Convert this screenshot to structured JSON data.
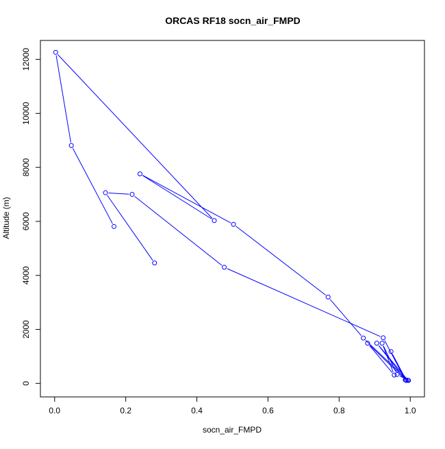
{
  "chart_data": {
    "type": "line",
    "title": "ORCAS RF18 socn_air_FMPD",
    "xlabel": "socn_air_FMPD",
    "ylabel": "Altitude (m)",
    "xlim": [
      -0.04,
      1.04
    ],
    "ylim": [
      -500,
      12700
    ],
    "x_ticks": [
      0.0,
      0.2,
      0.4,
      0.6,
      0.8,
      1.0
    ],
    "x_tick_labels": [
      "0.0",
      "0.2",
      "0.4",
      "0.6",
      "0.8",
      "1.0"
    ],
    "y_ticks": [
      0,
      2000,
      4000,
      6000,
      8000,
      10000,
      12000
    ],
    "y_tick_labels": [
      "0",
      "2000",
      "4000",
      "6000",
      "8000",
      "10000",
      "12000"
    ],
    "grid": false,
    "series_color": "#0000ff",
    "marker": "open-circle",
    "points": [
      {
        "x": 0.281,
        "y": 4460
      },
      {
        "x": 0.143,
        "y": 7060
      },
      {
        "x": 0.218,
        "y": 7000
      },
      {
        "x": 0.477,
        "y": 4300
      },
      {
        "x": 0.924,
        "y": 1690
      },
      {
        "x": 0.986,
        "y": 130
      },
      {
        "x": 0.995,
        "y": 110
      },
      {
        "x": 0.963,
        "y": 330
      },
      {
        "x": 0.921,
        "y": 1490
      },
      {
        "x": 0.955,
        "y": 310
      },
      {
        "x": 0.88,
        "y": 1490
      },
      {
        "x": 0.989,
        "y": 110
      },
      {
        "x": 0.946,
        "y": 1180
      },
      {
        "x": 0.988,
        "y": 120
      },
      {
        "x": 0.906,
        "y": 1490
      },
      {
        "x": 0.993,
        "y": 120
      },
      {
        "x": 0.868,
        "y": 1680
      },
      {
        "x": 0.769,
        "y": 3200
      },
      {
        "x": 0.503,
        "y": 5890
      },
      {
        "x": 0.24,
        "y": 7760
      },
      {
        "x": 0.449,
        "y": 6030
      },
      {
        "x": 0.003,
        "y": 12260
      },
      {
        "x": 0.047,
        "y": 8810
      },
      {
        "x": 0.167,
        "y": 5810
      }
    ]
  }
}
